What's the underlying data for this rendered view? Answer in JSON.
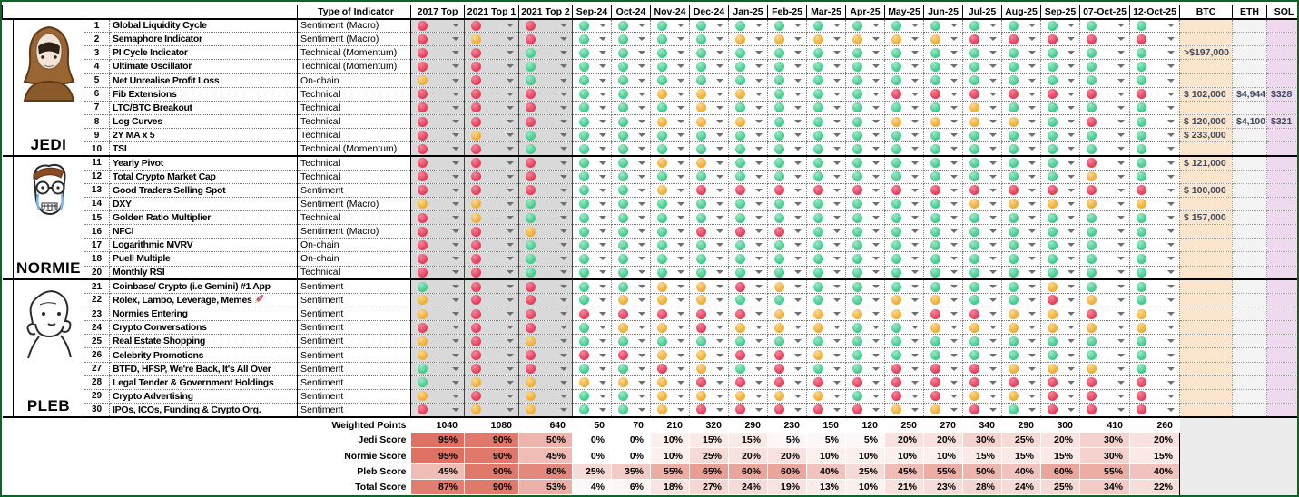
{
  "columns": {
    "type_header": "Type of Indicator",
    "dates": [
      "2017 Top",
      "2021 Top 1",
      "2021 Top 2",
      "Sep-24",
      "Oct-24",
      "Nov-24",
      "Dec-24",
      "Jan-25",
      "Feb-25",
      "Mar-25",
      "Apr-25",
      "May-25",
      "Jun-25",
      "Jul-25",
      "Aug-25",
      "Sep-25",
      "07-Oct-25",
      "12-Oct-25"
    ],
    "assets": [
      "BTC",
      "ETH",
      "SOL"
    ]
  },
  "legend": {
    "dot_colors": {
      "R": "#e63c58",
      "Y": "#f0ab33",
      "G": "#3ecb8b"
    }
  },
  "sections": [
    {
      "label": "JEDI",
      "avatar": "jedi-wojak",
      "rows": [
        {
          "num": "1",
          "name": "Global Liquidity Cycle",
          "type": "Sentiment (Macro)",
          "note": true,
          "dots": "RRRGGGGGGGGGGGGGGG"
        },
        {
          "num": "2",
          "name": "Semaphore Indicator",
          "type": "Sentiment (Macro)",
          "note": true,
          "dots": "RYRGGGGYYYYYYRRRRR"
        },
        {
          "num": "3",
          "name": "PI Cycle Indicator",
          "type": "Technical (Momentum)",
          "note": true,
          "dots": "RRGGGGGGGGGGGGGGGG",
          "btc": ">$197,000"
        },
        {
          "num": "4",
          "name": "Ultimate Oscillator",
          "type": "Technical (Momentum)",
          "note": true,
          "dots": "RRGGGGGGGGGGGGGGGG"
        },
        {
          "num": "5",
          "name": "Net Unrealise Profit Loss",
          "type": "On-chain",
          "note": true,
          "dots": "YRGGGGGGGGGGGGGGGG"
        },
        {
          "num": "6",
          "name": "Fib Extensions",
          "type": "Technical",
          "note": true,
          "dots": "RRRGGYYYGGGRRRRRRR",
          "btc": "$ 102,000",
          "eth": "$4,944",
          "sol": "$328"
        },
        {
          "num": "7",
          "name": "LTC/BTC Breakout",
          "type": "Technical",
          "note": false,
          "dots": "RRRGGGYGGGGGGYGGGG"
        },
        {
          "num": "8",
          "name": "Log Curves",
          "type": "Technical",
          "note": false,
          "dots": "RRRGGYYYGGGYYYYGRG",
          "btc": "$ 120,000",
          "eth": "$4,100",
          "sol": "$321"
        },
        {
          "num": "9",
          "name": "2Y MA x 5",
          "type": "Technical",
          "note": false,
          "dots": "RYGGGGGGGGGGGGGGGG",
          "btc": "$ 233,000"
        },
        {
          "num": "10",
          "name": "TSI",
          "type": "Technical (Momentum)",
          "note": true,
          "dots": "RRGGGGGGGGGGGGGGGG"
        }
      ]
    },
    {
      "label": "NORMIE",
      "avatar": "normie-wojak",
      "rows": [
        {
          "num": "11",
          "name": "Yearly Pivot",
          "type": "Technical",
          "note": false,
          "dots": "RRRGGYYGGGGGGGGGRG",
          "btc": "$ 121,000"
        },
        {
          "num": "12",
          "name": "Total Crypto Market Cap",
          "type": "Technical",
          "note": false,
          "dots": "RRRGGGGGGGGGGGGGYG"
        },
        {
          "num": "13",
          "name": "Good Traders Selling Spot",
          "type": "Sentiment",
          "note": true,
          "dots": "RRRGGYRRRRRRRRRRRR",
          "btc": "$ 100,000"
        },
        {
          "num": "14",
          "name": "DXY",
          "type": "Sentiment (Macro)",
          "note": true,
          "dots": "YYGGGGGGGGGGGYYYYY"
        },
        {
          "num": "15",
          "name": "Golden Ratio Multiplier",
          "type": "Technical",
          "note": false,
          "dots": "RYGGGGGGGGGGGGGGGG",
          "btc": "$ 157,000"
        },
        {
          "num": "16",
          "name": "NFCI",
          "type": "Sentiment (Macro)",
          "note": true,
          "dots": "RRYGGGRRRGGGGGGGGG"
        },
        {
          "num": "17",
          "name": "Logarithmic MVRV",
          "type": "On-chain",
          "note": false,
          "dots": "RRGGGGGGGGGGGGGGGG"
        },
        {
          "num": "18",
          "name": "Puell Multiple",
          "type": "On-chain",
          "note": true,
          "dots": "RRGGGGGGGGGGGGGGGG"
        },
        {
          "num": "20",
          "name": "Monthly RSI",
          "type": "Technical",
          "note": false,
          "dots": "RRGGGGGGGGGGGGGGGG"
        }
      ]
    },
    {
      "label": "PLEB",
      "avatar": "pleb-wojak",
      "rows": [
        {
          "num": "21",
          "name": "Coinbase/ Crypto (i.e Gemini) #1 App",
          "type": "Sentiment",
          "note": false,
          "dots": "GRRGGYYRYGGGGGGYGG"
        },
        {
          "num": "22",
          "name": "Rolex, Lambo, Leverage, Memes 🚀",
          "type": "Sentiment",
          "note": true,
          "dots": "YRRGYYYGGGGYYGGRYG"
        },
        {
          "num": "23",
          "name": "Normies Entering",
          "type": "Sentiment",
          "note": false,
          "dots": "YRRRRRRRYYYYRRYYRY"
        },
        {
          "num": "24",
          "name": "Crypto Conversations",
          "type": "Sentiment",
          "note": false,
          "dots": "RRRGYYRYYYGGYYYYYY"
        },
        {
          "num": "25",
          "name": "Real Estate Shopping",
          "type": "Sentiment",
          "note": false,
          "dots": "YRYGGGGGGGGGGGGGGG"
        },
        {
          "num": "26",
          "name": "Celebrity Promotions",
          "type": "Sentiment",
          "note": false,
          "dots": "YRRRRYYRRYGGGGGGGG"
        },
        {
          "num": "27",
          "name": "BTFD, HFSP, We're Back, It's All Over",
          "type": "Sentiment",
          "note": false,
          "dots": "GRRGGRYGRGGRRRYYYG"
        },
        {
          "num": "28",
          "name": "Legal Tender & Government Holdings",
          "type": "Sentiment",
          "note": false,
          "dots": "GYYYYYRRRRRRRRRRRR"
        },
        {
          "num": "29",
          "name": "Crypto Advertising",
          "type": "Sentiment",
          "note": false,
          "dots": "YRYGGYYYYYGRRYYRRR"
        },
        {
          "num": "30",
          "name": "IPOs, ICOs, Funding & Crypto Org.",
          "type": "Sentiment",
          "note": true,
          "dots": "RYYGGYRRRRRYYRGRRR"
        }
      ]
    }
  ],
  "summary": {
    "rows": [
      {
        "label": "Weighted Points",
        "heat": false,
        "values": [
          "1040",
          "1080",
          "640",
          "50",
          "70",
          "210",
          "320",
          "290",
          "230",
          "150",
          "120",
          "250",
          "270",
          "340",
          "290",
          "300",
          "410",
          "260"
        ]
      },
      {
        "label": "Jedi Score",
        "heat": true,
        "values": [
          "95%",
          "90%",
          "50%",
          "0%",
          "0%",
          "10%",
          "15%",
          "15%",
          "5%",
          "5%",
          "5%",
          "20%",
          "20%",
          "30%",
          "25%",
          "20%",
          "30%",
          "20%"
        ]
      },
      {
        "label": "Normie Score",
        "heat": true,
        "values": [
          "95%",
          "90%",
          "45%",
          "0%",
          "0%",
          "10%",
          "25%",
          "20%",
          "20%",
          "10%",
          "10%",
          "10%",
          "10%",
          "15%",
          "15%",
          "15%",
          "30%",
          "15%"
        ]
      },
      {
        "label": "Pleb Score",
        "heat": true,
        "values": [
          "45%",
          "90%",
          "80%",
          "25%",
          "35%",
          "55%",
          "65%",
          "60%",
          "60%",
          "40%",
          "25%",
          "45%",
          "55%",
          "50%",
          "40%",
          "60%",
          "55%",
          "40%"
        ]
      },
      {
        "label": "Total Score",
        "heat": true,
        "values": [
          "87%",
          "90%",
          "53%",
          "4%",
          "6%",
          "18%",
          "27%",
          "24%",
          "19%",
          "13%",
          "10%",
          "21%",
          "23%",
          "28%",
          "24%",
          "25%",
          "34%",
          "22%"
        ]
      }
    ]
  },
  "theme": {
    "grey_column_bg": "#d9d9d9",
    "btc_column_bg": "#fce5cd",
    "eth_column_bg": "#f3f3f3",
    "sol_column_bg": "#eed9ee",
    "heat_base": "#dd6a5c",
    "sheet_border": "#0e6428"
  }
}
